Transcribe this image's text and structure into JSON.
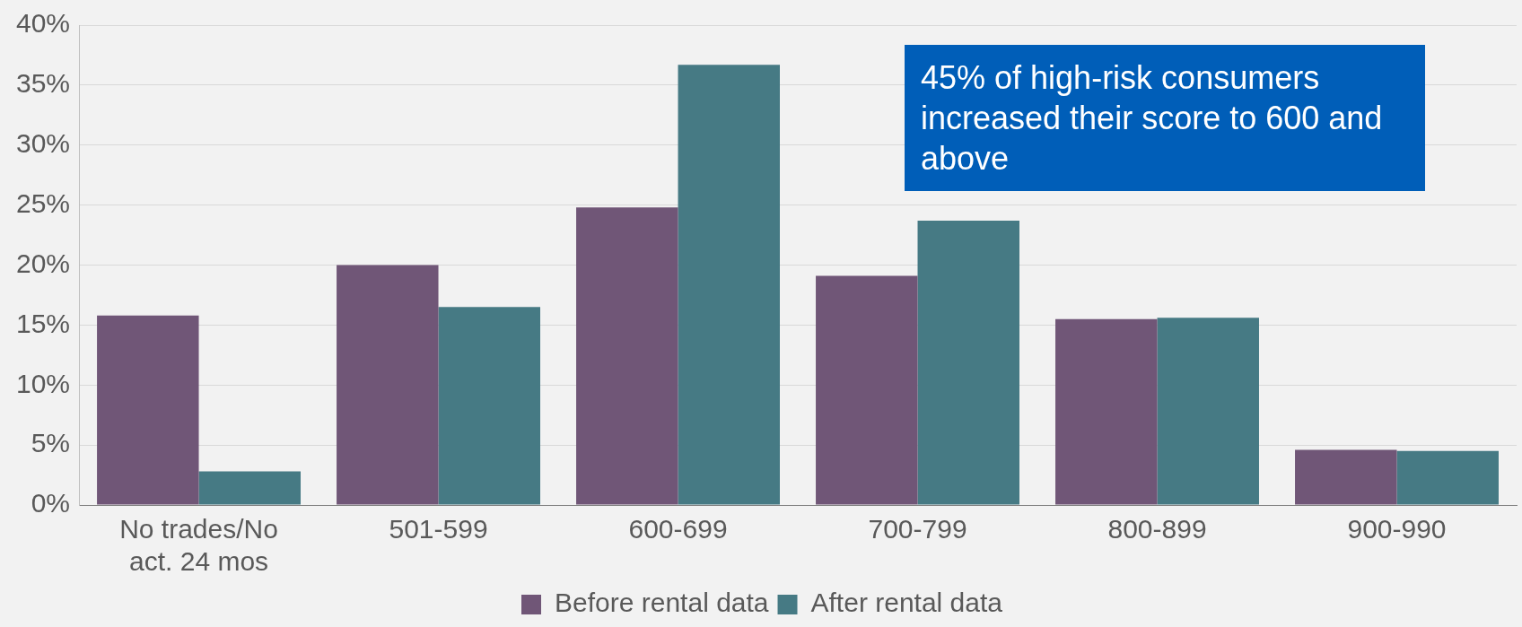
{
  "chart_data": {
    "type": "bar",
    "categories": [
      "No trades/No act. 24 mos",
      "501-599",
      "600-699",
      "700-799",
      "800-899",
      "900-990"
    ],
    "series": [
      {
        "name": "Before rental data",
        "color": "#705677",
        "values": [
          15.8,
          20.0,
          24.8,
          19.1,
          15.5,
          4.6
        ]
      },
      {
        "name": "After rental data",
        "color": "#467a84",
        "values": [
          2.8,
          16.5,
          36.7,
          23.7,
          15.6,
          4.5
        ]
      }
    ],
    "ylim": [
      0,
      40
    ],
    "yticks": [
      {
        "value": 0,
        "label": "0%"
      },
      {
        "value": 5,
        "label": "5%"
      },
      {
        "value": 10,
        "label": "10%"
      },
      {
        "value": 15,
        "label": "15%"
      },
      {
        "value": 20,
        "label": "20%"
      },
      {
        "value": 25,
        "label": "25%"
      },
      {
        "value": 30,
        "label": "30%"
      },
      {
        "value": 35,
        "label": "35%"
      },
      {
        "value": 40,
        "label": "40%"
      }
    ],
    "grid": "y",
    "legend": "bottom",
    "annotations": [
      "45% of high-risk consumers increased their score to 600 and above"
    ]
  }
}
